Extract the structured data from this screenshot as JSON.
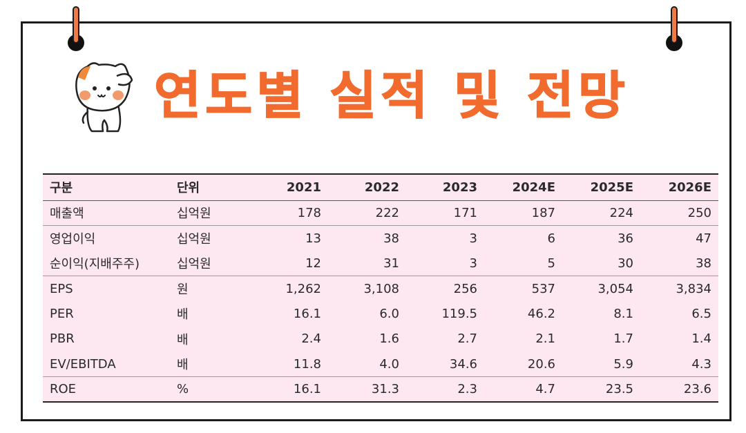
{
  "title": "연도별 실적 및 전망",
  "table": {
    "headers": [
      "구분",
      "단위",
      "2021",
      "2022",
      "2023",
      "2024E",
      "2025E",
      "2026E"
    ],
    "rows": [
      {
        "label": "매출액",
        "unit": "십억원",
        "values": [
          "178",
          "222",
          "171",
          "187",
          "224",
          "250"
        ]
      },
      {
        "label": "영업이익",
        "unit": "십억원",
        "values": [
          "13",
          "38",
          "3",
          "6",
          "36",
          "47"
        ]
      },
      {
        "label": "순이익(지배주주)",
        "unit": "십억원",
        "values": [
          "12",
          "31",
          "3",
          "5",
          "30",
          "38"
        ]
      },
      {
        "label": "EPS",
        "unit": "원",
        "values": [
          "1,262",
          "3,108",
          "256",
          "537",
          "3,054",
          "3,834"
        ]
      },
      {
        "label": "PER",
        "unit": "배",
        "values": [
          "16.1",
          "6.0",
          "119.5",
          "46.2",
          "8.1",
          "6.5"
        ]
      },
      {
        "label": "PBR",
        "unit": "배",
        "values": [
          "2.4",
          "1.6",
          "2.7",
          "2.1",
          "1.7",
          "1.4"
        ]
      },
      {
        "label": "EV/EBITDA",
        "unit": "배",
        "values": [
          "11.8",
          "4.0",
          "34.6",
          "20.6",
          "5.9",
          "4.3"
        ]
      },
      {
        "label": "ROE",
        "unit": "%",
        "values": [
          "16.1",
          "31.3",
          "2.3",
          "4.7",
          "23.5",
          "23.6"
        ]
      }
    ]
  },
  "colors": {
    "title": "#f26b2e",
    "table_background": "#fde8f2",
    "pin_orange": "#f07a45",
    "border": "#1a1a1a"
  },
  "icons": {
    "mascot": "saluting-cat-mascot-icon",
    "pins": "binder-ring-pin-icon"
  }
}
